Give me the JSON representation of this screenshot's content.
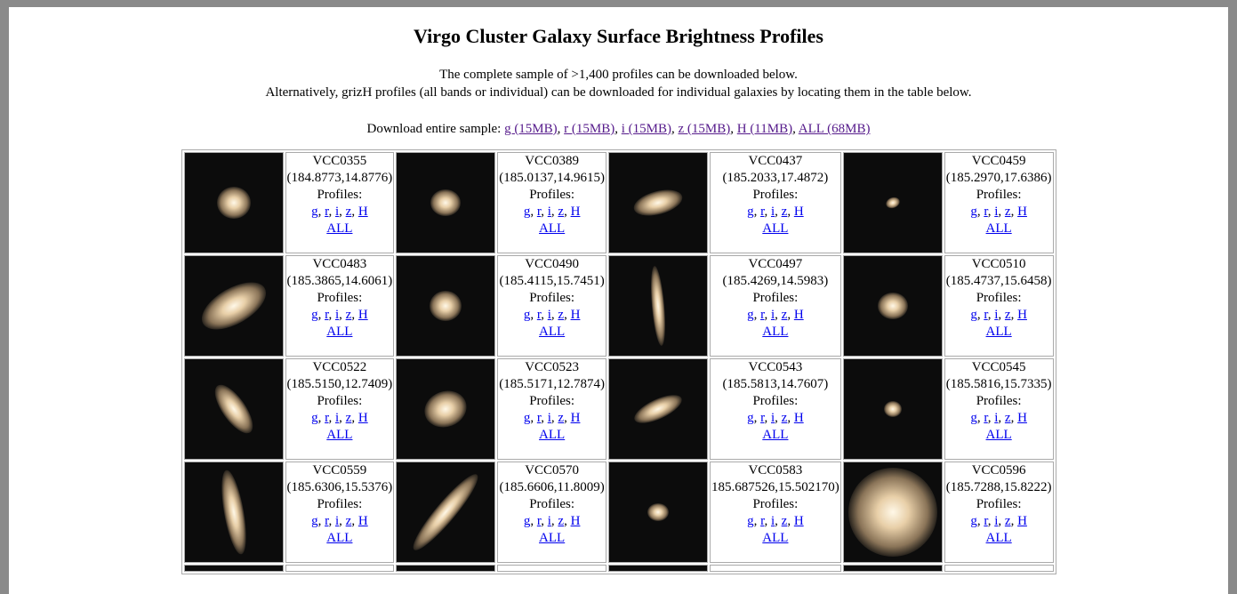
{
  "header": {
    "title": "Virgo Cluster Galaxy Surface Brightness Profiles",
    "intro": [
      "The complete sample of >1,400 profiles can be downloaded below.",
      "Alternatively, grizH profiles (all bands or individual) can be downloaded for individual galaxies by locating them in the table below."
    ],
    "download_label": "Download entire sample:",
    "download_links": [
      "g (15MB)",
      "r (15MB)",
      "i (15MB)",
      "z (15MB)",
      "H (11MB)",
      "ALL (68MB)"
    ],
    "download_separator": ","
  },
  "table": {
    "profiles_label": "Profiles:",
    "profile_links": [
      "g",
      "r",
      "i",
      "z",
      "H"
    ],
    "link_separator": ",",
    "all_link": "ALL",
    "galaxies": [
      {
        "name": "VCC0355",
        "coords": "(184.8773,14.8776)"
      },
      {
        "name": "VCC0389",
        "coords": "(185.0137,14.9615)"
      },
      {
        "name": "VCC0437",
        "coords": "(185.2033,17.4872)"
      },
      {
        "name": "VCC0459",
        "coords": "(185.2970,17.6386)"
      },
      {
        "name": "VCC0483",
        "coords": "(185.3865,14.6061)"
      },
      {
        "name": "VCC0490",
        "coords": "(185.4115,15.7451)"
      },
      {
        "name": "VCC0497",
        "coords": "(185.4269,14.5983)"
      },
      {
        "name": "VCC0510",
        "coords": "(185.4737,15.6458)"
      },
      {
        "name": "VCC0522",
        "coords": "(185.5150,12.7409)"
      },
      {
        "name": "VCC0523",
        "coords": "(185.5171,12.7874)"
      },
      {
        "name": "VCC0543",
        "coords": "(185.5813,14.7607)"
      },
      {
        "name": "VCC0545",
        "coords": "(185.5816,15.7335)"
      },
      {
        "name": "VCC0559",
        "coords": "(185.6306,15.5376)"
      },
      {
        "name": "VCC0570",
        "coords": "(185.6606,11.8009)"
      },
      {
        "name": "VCC0583",
        "coords": "185.687526,15.502170)"
      },
      {
        "name": "VCC0596",
        "coords": "(185.7288,15.8222)"
      }
    ]
  }
}
